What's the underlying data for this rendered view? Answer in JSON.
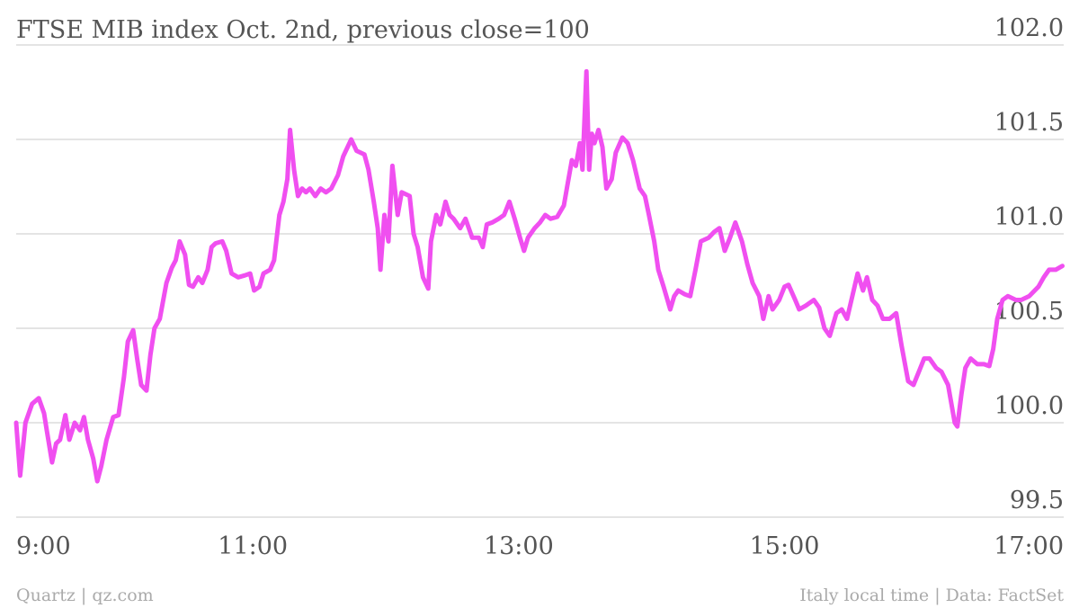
{
  "chart_data": {
    "type": "line",
    "title": "FTSE MIB index Oct. 2nd, previous close=100",
    "credit": "Quartz | qz.com",
    "source": "Italy local time | Data: FactSet",
    "color": "#f04ff0",
    "grid": true,
    "xlim": [
      9.22,
      17.1
    ],
    "xticks": [
      {
        "value": 9,
        "label": "9:00"
      },
      {
        "value": 11,
        "label": "11:00"
      },
      {
        "value": 13,
        "label": "13:00"
      },
      {
        "value": 15,
        "label": "15:00"
      },
      {
        "value": 17,
        "label": "17:00"
      }
    ],
    "ylim": [
      99.5,
      102.0
    ],
    "yticks": [
      {
        "value": 99.5,
        "label": "99.5"
      },
      {
        "value": 100,
        "label": "100.0"
      },
      {
        "value": 100.5,
        "label": "100.5"
      },
      {
        "value": 101,
        "label": "101.0"
      },
      {
        "value": 101.5,
        "label": "101.5"
      },
      {
        "value": 102,
        "label": "102.0"
      }
    ],
    "x": [
      9.22,
      9.25,
      9.29,
      9.34,
      9.39,
      9.43,
      9.45,
      9.49,
      9.52,
      9.55,
      9.59,
      9.62,
      9.66,
      9.7,
      9.73,
      9.76,
      9.8,
      9.83,
      9.86,
      9.9,
      9.95,
      9.99,
      10.03,
      10.06,
      10.1,
      10.13,
      10.16,
      10.2,
      10.23,
      10.26,
      10.3,
      10.35,
      10.39,
      10.42,
      10.45,
      10.49,
      10.52,
      10.55,
      10.59,
      10.62,
      10.66,
      10.69,
      10.72,
      10.77,
      10.8,
      10.84,
      10.89,
      10.94,
      10.98,
      11.01,
      11.05,
      11.08,
      11.13,
      11.16,
      11.2,
      11.23,
      11.26,
      11.28,
      11.31,
      11.34,
      11.37,
      11.4,
      11.43,
      11.47,
      11.51,
      11.55,
      11.59,
      11.64,
      11.68,
      11.74,
      11.78,
      11.84,
      11.87,
      11.91,
      11.94,
      11.96,
      11.99,
      12.02,
      12.05,
      12.09,
      12.12,
      12.18,
      12.21,
      12.24,
      12.28,
      12.32,
      12.34,
      12.38,
      12.41,
      12.45,
      12.48,
      12.51,
      12.56,
      12.6,
      12.65,
      12.7,
      12.73,
      12.76,
      12.8,
      12.85,
      12.89,
      12.93,
      12.97,
      13.01,
      13.04,
      13.07,
      13.12,
      13.16,
      13.2,
      13.24,
      13.29,
      13.34,
      13.37,
      13.4,
      13.43,
      13.46,
      13.48,
      13.51,
      13.53,
      13.55,
      13.57,
      13.6,
      13.63,
      13.66,
      13.7,
      13.73,
      13.78,
      13.82,
      13.86,
      13.91,
      13.95,
      13.98,
      14.02,
      14.05,
      14.09,
      14.14,
      14.17,
      14.2,
      14.25,
      14.29,
      14.33,
      14.37,
      14.43,
      14.47,
      14.51,
      14.55,
      14.59,
      14.63,
      14.68,
      14.72,
      14.76,
      14.81,
      14.84,
      14.88,
      14.91,
      14.96,
      15.0,
      15.03,
      15.08,
      15.11,
      15.16,
      15.22,
      15.26,
      15.3,
      15.34,
      15.39,
      15.43,
      15.47,
      15.51,
      15.55,
      15.59,
      15.62,
      15.66,
      15.7,
      15.74,
      15.79,
      15.84,
      15.88,
      15.93,
      15.97,
      16.01,
      16.05,
      16.09,
      16.14,
      16.18,
      16.23,
      16.28,
      16.3,
      16.33,
      16.36,
      16.4,
      16.45,
      16.5,
      16.54,
      16.57,
      16.6,
      16.64,
      16.68,
      16.74,
      16.78,
      16.84,
      16.91,
      16.95,
      16.99,
      17.04,
      17.09
    ],
    "values": [
      100.0,
      99.72,
      100.0,
      100.1,
      100.13,
      100.05,
      99.96,
      99.79,
      99.89,
      99.91,
      100.04,
      99.91,
      100.0,
      99.96,
      100.03,
      99.91,
      99.81,
      99.69,
      99.77,
      99.91,
      100.03,
      100.04,
      100.24,
      100.43,
      100.49,
      100.34,
      100.2,
      100.17,
      100.36,
      100.5,
      100.55,
      100.74,
      100.82,
      100.86,
      100.96,
      100.89,
      100.73,
      100.72,
      100.77,
      100.74,
      100.81,
      100.93,
      100.95,
      100.96,
      100.91,
      100.79,
      100.77,
      100.78,
      100.79,
      100.7,
      100.72,
      100.79,
      100.81,
      100.86,
      101.1,
      101.17,
      101.29,
      101.55,
      101.34,
      101.2,
      101.24,
      101.22,
      101.24,
      101.2,
      101.24,
      101.22,
      101.24,
      101.31,
      101.41,
      101.5,
      101.44,
      101.42,
      101.34,
      101.17,
      101.03,
      100.81,
      101.1,
      100.96,
      101.36,
      101.1,
      101.22,
      101.2,
      101.0,
      100.93,
      100.77,
      100.71,
      100.96,
      101.1,
      101.05,
      101.17,
      101.1,
      101.08,
      101.03,
      101.08,
      100.98,
      100.98,
      100.93,
      101.05,
      101.06,
      101.08,
      101.1,
      101.17,
      101.08,
      100.98,
      100.91,
      100.98,
      101.03,
      101.06,
      101.1,
      101.08,
      101.09,
      101.15,
      101.27,
      101.39,
      101.36,
      101.48,
      101.34,
      101.86,
      101.34,
      101.53,
      101.48,
      101.55,
      101.46,
      101.24,
      101.29,
      101.43,
      101.51,
      101.48,
      101.39,
      101.24,
      101.2,
      101.1,
      100.96,
      100.81,
      100.72,
      100.6,
      100.67,
      100.7,
      100.68,
      100.67,
      100.81,
      100.96,
      100.98,
      101.01,
      101.03,
      100.91,
      100.98,
      101.06,
      100.96,
      100.84,
      100.74,
      100.67,
      100.55,
      100.67,
      100.6,
      100.65,
      100.72,
      100.73,
      100.65,
      100.6,
      100.62,
      100.65,
      100.61,
      100.5,
      100.46,
      100.58,
      100.6,
      100.55,
      100.67,
      100.79,
      100.7,
      100.77,
      100.65,
      100.62,
      100.55,
      100.55,
      100.58,
      100.41,
      100.22,
      100.2,
      100.27,
      100.34,
      100.34,
      100.29,
      100.27,
      100.2,
      100.0,
      99.98,
      100.15,
      100.29,
      100.34,
      100.31,
      100.31,
      100.3,
      100.39,
      100.55,
      100.65,
      100.67,
      100.65,
      100.65,
      100.67,
      100.72,
      100.77,
      100.81,
      100.81,
      100.83
    ]
  }
}
